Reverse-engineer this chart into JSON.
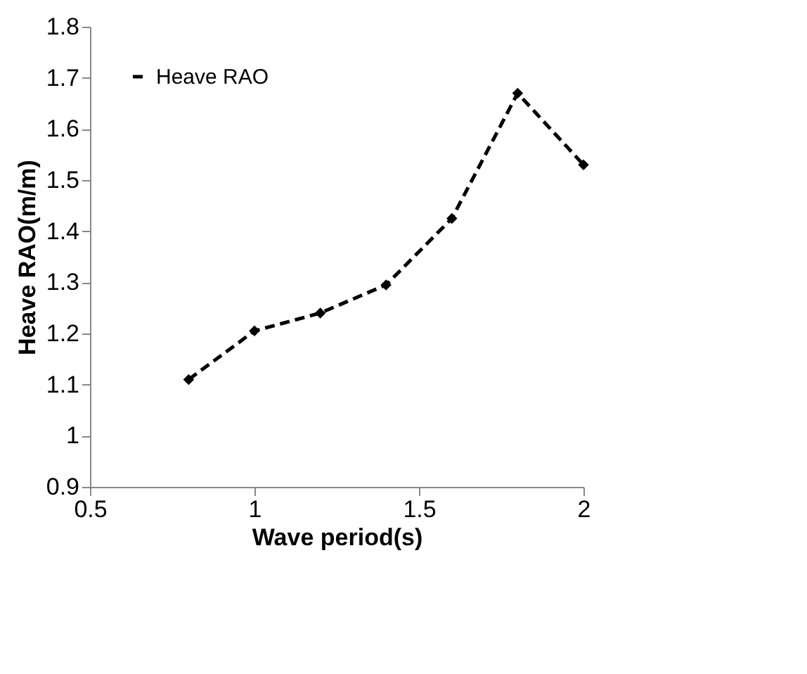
{
  "chart_data": {
    "type": "line",
    "xlabel": "Wave period(s)",
    "ylabel": "Heave RAO(m/m)",
    "x": [
      0.8,
      1.0,
      1.2,
      1.4,
      1.6,
      1.8,
      2.0
    ],
    "series": [
      {
        "name": "Heave RAO",
        "color": "#000000",
        "values": [
          1.11,
          1.205,
          1.24,
          1.295,
          1.425,
          1.67,
          1.53
        ]
      }
    ],
    "xlim": [
      0.5,
      2.0
    ],
    "xticks": [
      0.5,
      1,
      1.5,
      2
    ],
    "ylim": [
      0.9,
      1.8
    ],
    "yticks": [
      0.9,
      1,
      1.1,
      1.2,
      1.3,
      1.4,
      1.5,
      1.6,
      1.7,
      1.8
    ],
    "grid": false,
    "legend": "top left",
    "marker": "diamond",
    "line_style": "dashed"
  }
}
